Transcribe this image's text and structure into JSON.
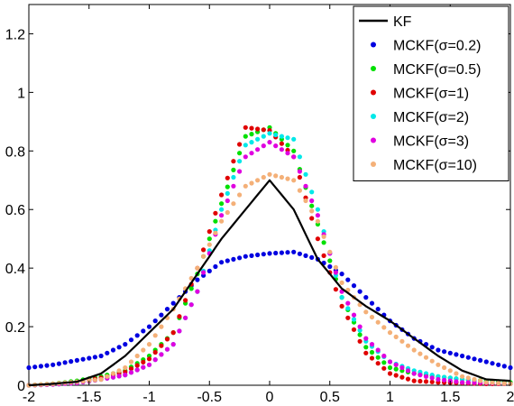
{
  "chart_data": {
    "type": "line",
    "title": "",
    "xlabel": "",
    "ylabel": "",
    "xlim": [
      -2,
      2
    ],
    "ylim": [
      0,
      1.3
    ],
    "xticks": [
      "-2",
      "-1.5",
      "-1",
      "-0.5",
      "0",
      "0.5",
      "1",
      "1.5",
      "2"
    ],
    "yticks": [
      "0",
      "0.2",
      "0.4",
      "0.6",
      "0.8",
      "1",
      "1.2"
    ],
    "grid": false,
    "legend_position": "top-right",
    "x": [
      -2,
      -1.8,
      -1.6,
      -1.4,
      -1.2,
      -1,
      -0.8,
      -0.6,
      -0.4,
      -0.2,
      0,
      0.2,
      0.4,
      0.6,
      0.8,
      1,
      1.2,
      1.4,
      1.6,
      1.8,
      2
    ],
    "series": [
      {
        "name": "KF",
        "style": "line",
        "color": "#000000",
        "values": [
          0.0,
          0.005,
          0.012,
          0.04,
          0.1,
          0.18,
          0.26,
          0.38,
          0.5,
          0.6,
          0.7,
          0.6,
          0.43,
          0.33,
          0.27,
          0.22,
          0.16,
          0.1,
          0.05,
          0.02,
          0.015
        ]
      },
      {
        "name": "MCKF(σ=0.2)",
        "style": "dots",
        "color": "#0000e0",
        "values": [
          0.06,
          0.07,
          0.085,
          0.1,
          0.14,
          0.2,
          0.28,
          0.36,
          0.42,
          0.44,
          0.45,
          0.455,
          0.43,
          0.38,
          0.3,
          0.22,
          0.16,
          0.12,
          0.1,
          0.08,
          0.06
        ]
      },
      {
        "name": "MCKF(σ=0.5)",
        "style": "dots",
        "color": "#00e000",
        "values": [
          0.0,
          0.005,
          0.015,
          0.03,
          0.05,
          0.1,
          0.18,
          0.38,
          0.62,
          0.85,
          0.88,
          0.8,
          0.55,
          0.3,
          0.13,
          0.06,
          0.04,
          0.03,
          0.02,
          0.015,
          0.01
        ]
      },
      {
        "name": "MCKF(σ=1)",
        "style": "dots",
        "color": "#e00000",
        "values": [
          0.0,
          0.003,
          0.01,
          0.025,
          0.045,
          0.09,
          0.18,
          0.4,
          0.65,
          0.88,
          0.87,
          0.78,
          0.5,
          0.27,
          0.11,
          0.04,
          0.015,
          0.01,
          0.008,
          0.005,
          0.005
        ]
      },
      {
        "name": "MCKF(σ=2)",
        "style": "dots",
        "color": "#00e8e8",
        "values": [
          0.0,
          0.003,
          0.008,
          0.02,
          0.035,
          0.07,
          0.14,
          0.32,
          0.6,
          0.82,
          0.86,
          0.84,
          0.6,
          0.3,
          0.15,
          0.08,
          0.05,
          0.03,
          0.02,
          0.01,
          0.005
        ]
      },
      {
        "name": "MCKF(σ=3)",
        "style": "dots",
        "color": "#e000e0",
        "values": [
          0.0,
          0.003,
          0.008,
          0.02,
          0.035,
          0.07,
          0.14,
          0.32,
          0.58,
          0.78,
          0.83,
          0.78,
          0.58,
          0.32,
          0.16,
          0.08,
          0.04,
          0.02,
          0.01,
          0.008,
          0.005
        ]
      },
      {
        "name": "MCKF(σ=10)",
        "style": "dots",
        "color": "#f4b078",
        "values": [
          0.0,
          0.005,
          0.012,
          0.02,
          0.06,
          0.14,
          0.26,
          0.4,
          0.56,
          0.68,
          0.72,
          0.7,
          0.56,
          0.35,
          0.25,
          0.18,
          0.12,
          0.07,
          0.03,
          0.01,
          0.005
        ]
      }
    ]
  }
}
